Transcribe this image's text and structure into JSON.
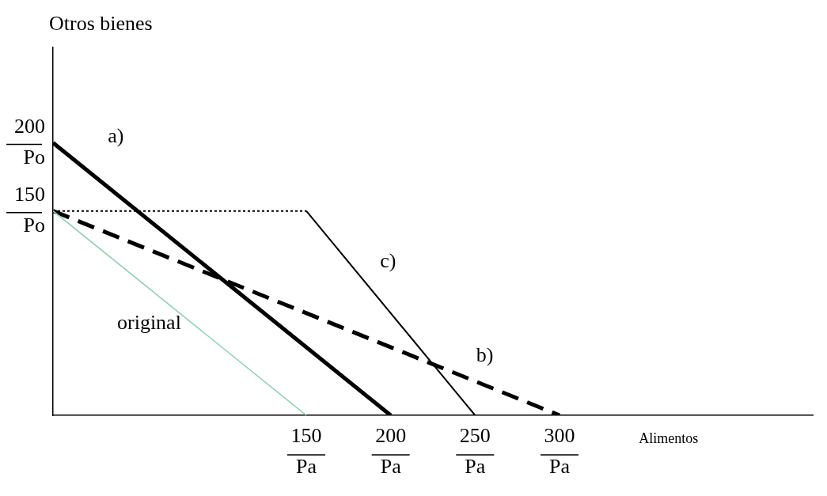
{
  "chart_data": {
    "type": "line",
    "ylabel": "Otros bienes",
    "xlabel": "Alimentos",
    "xlim": [
      0,
      450
    ],
    "ylim": [
      0,
      270
    ],
    "xticks": [
      {
        "value": 150,
        "label": "150 Pa"
      },
      {
        "value": 200,
        "label": "200 Pa"
      },
      {
        "value": 250,
        "label": "250 Pa"
      },
      {
        "value": 300,
        "label": "300 Pa"
      }
    ],
    "yticks": [
      {
        "value": 150,
        "label": "150 Po"
      },
      {
        "value": 200,
        "label": "200 Po"
      }
    ],
    "grid": false,
    "legend": false,
    "marker": "none",
    "series": [
      {
        "name": "original",
        "color": "#8fcfb0",
        "x": [
          0,
          150
        ],
        "values": [
          150,
          0
        ],
        "line_style": "solid"
      },
      {
        "name": "a)",
        "color": "#000000",
        "x": [
          0,
          200
        ],
        "values": [
          200,
          0
        ],
        "line_style": "solid"
      },
      {
        "name": "b)",
        "color": "#000000",
        "x": [
          0,
          300
        ],
        "values": [
          150,
          0
        ],
        "line_style": "dashed"
      },
      {
        "color": "#000000",
        "x": [
          0,
          150
        ],
        "values": [
          150,
          150
        ],
        "line_style": "dotted"
      },
      {
        "name": "c)",
        "color": "#000000",
        "x": [
          150,
          250
        ],
        "values": [
          150,
          0
        ],
        "line_style": "solid"
      }
    ]
  }
}
